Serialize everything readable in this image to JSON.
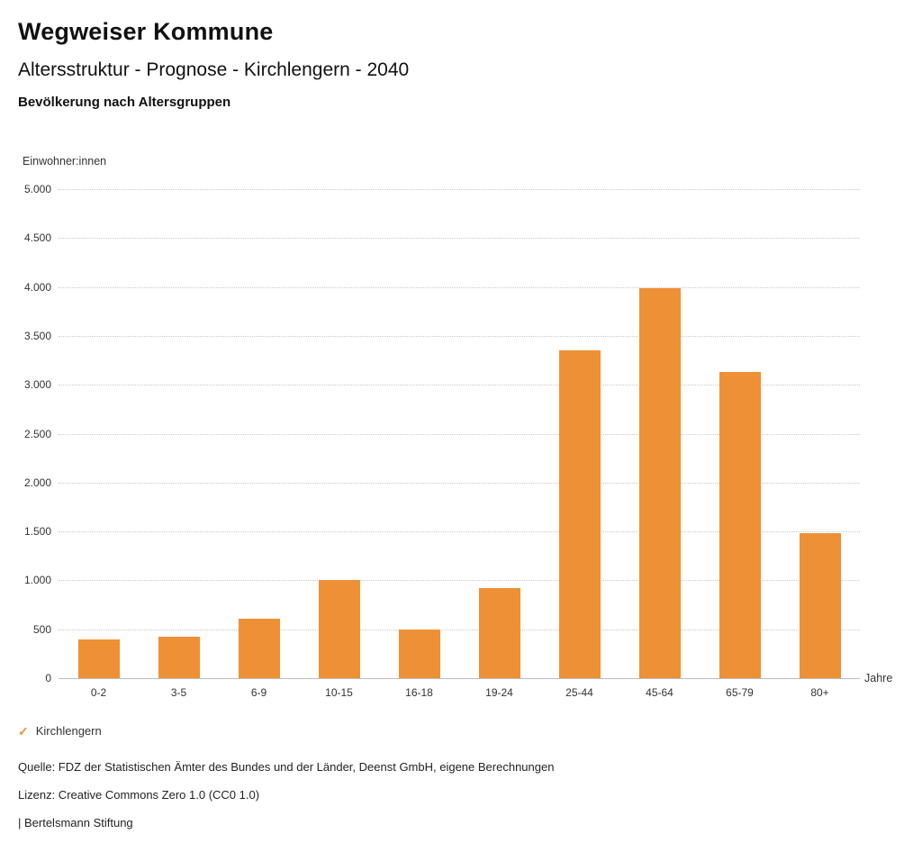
{
  "header": {
    "title": "Wegweiser Kommune",
    "subtitle": "Altersstruktur - Prognose - Kirchlengern - 2040",
    "chart_heading": "Bevölkerung nach Altersgruppen"
  },
  "chart_data": {
    "type": "bar",
    "title": "Bevölkerung nach Altersgruppen",
    "unit_label": "Einwohner:innen",
    "xlabel": "Jahre",
    "ylabel": "Einwohner:innen",
    "categories": [
      "0-2",
      "3-5",
      "6-9",
      "10-15",
      "16-18",
      "19-24",
      "25-44",
      "45-64",
      "65-79",
      "80+"
    ],
    "series": [
      {
        "name": "Kirchlengern",
        "values": [
          400,
          420,
          610,
          1000,
          500,
          920,
          3350,
          3990,
          3130,
          1480
        ]
      }
    ],
    "ylim": [
      0,
      5000
    ],
    "ytick_step": 500,
    "ytick_labels": [
      "0",
      "500",
      "1.000",
      "1.500",
      "2.000",
      "2.500",
      "3.000",
      "3.500",
      "4.000",
      "4.500",
      "5.000"
    ],
    "grid": "horizontal-dotted",
    "bar_color": "#ED9036",
    "legend_position": "bottom-left"
  },
  "legend": {
    "items": [
      {
        "label": "Kirchlengern",
        "color": "#ED9036",
        "check": "✓"
      }
    ]
  },
  "footer": {
    "source": "Quelle: FDZ der Statistischen Ämter des Bundes und der Länder, Deenst GmbH, eigene Berechnungen",
    "license": "Lizenz: Creative Commons Zero 1.0 (CC0 1.0)",
    "attribution": "| Bertelsmann Stiftung"
  }
}
